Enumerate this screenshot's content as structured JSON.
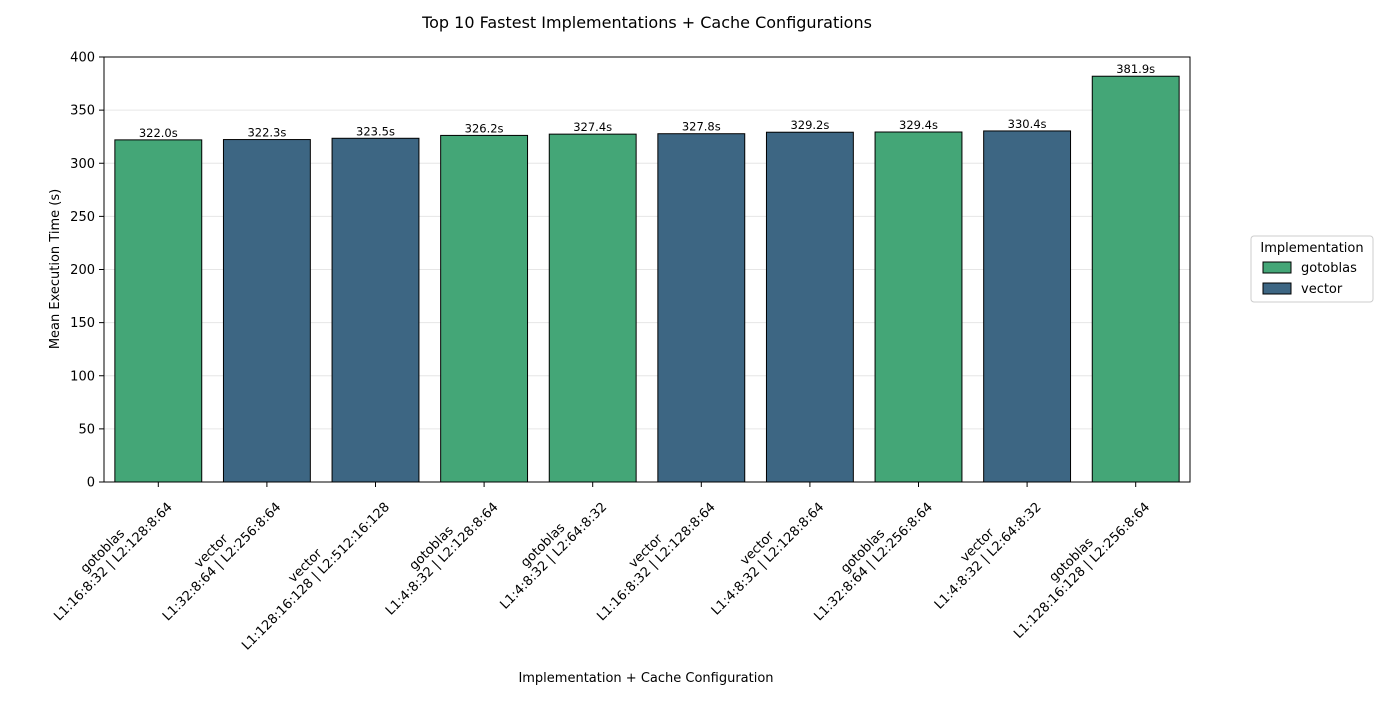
{
  "chart_data": {
    "type": "bar",
    "title": "Top 10 Fastest Implementations + Cache Configurations",
    "xlabel": "Implementation + Cache Configuration",
    "ylabel": "Mean Execution Time (s)",
    "ylim": [
      0,
      400
    ],
    "yticks": [
      0,
      50,
      100,
      150,
      200,
      250,
      300,
      350,
      400
    ],
    "grid": "horizontal",
    "legend": {
      "title": "Implementation",
      "placement": "right",
      "entries": [
        {
          "name": "gotoblas",
          "color": "#44a677"
        },
        {
          "name": "vector",
          "color": "#3d6683"
        }
      ]
    },
    "categories": [
      {
        "impl": "gotoblas",
        "config": "L1:16:8:32 | L2:128:8:64"
      },
      {
        "impl": "vector",
        "config": "L1:32:8:64 | L2:256:8:64"
      },
      {
        "impl": "vector",
        "config": "L1:128:16:128 | L2:512:16:128"
      },
      {
        "impl": "gotoblas",
        "config": "L1:4:8:32 | L2:128:8:64"
      },
      {
        "impl": "gotoblas",
        "config": "L1:4:8:32 | L2:64:8:32"
      },
      {
        "impl": "vector",
        "config": "L1:16:8:32 | L2:128:8:64"
      },
      {
        "impl": "vector",
        "config": "L1:4:8:32 | L2:128:8:64"
      },
      {
        "impl": "gotoblas",
        "config": "L1:32:8:64 | L2:256:8:64"
      },
      {
        "impl": "vector",
        "config": "L1:4:8:32 | L2:64:8:32"
      },
      {
        "impl": "gotoblas",
        "config": "L1:128:16:128 | L2:256:8:64"
      }
    ],
    "values": [
      322.0,
      322.3,
      323.5,
      326.2,
      327.4,
      327.8,
      329.2,
      329.4,
      330.4,
      381.9
    ],
    "value_labels": [
      "322.0s",
      "322.3s",
      "323.5s",
      "326.2s",
      "327.4s",
      "327.8s",
      "329.2s",
      "329.4s",
      "330.4s",
      "381.9s"
    ]
  }
}
